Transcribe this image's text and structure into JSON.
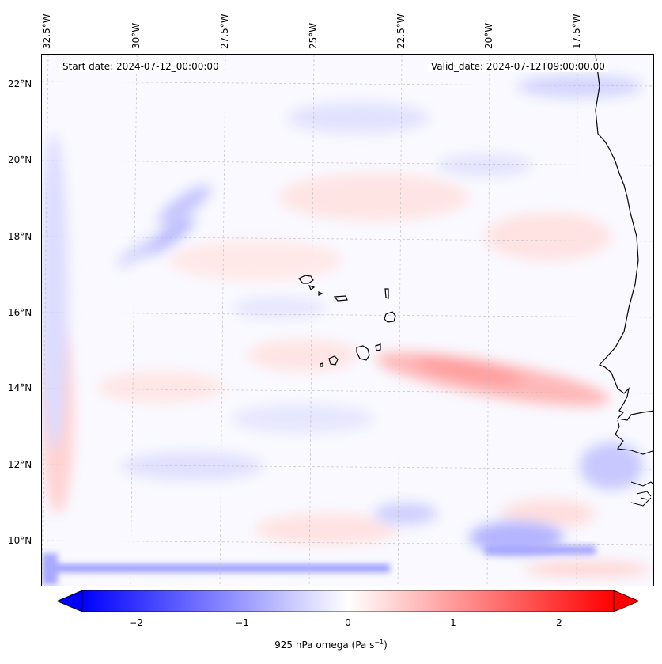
{
  "map": {
    "lon_labels": [
      "32.5°W",
      "30°W",
      "27.5°W",
      "25°W",
      "22.5°W",
      "20°W",
      "17.5°W"
    ],
    "lat_labels": [
      "22°N",
      "20°N",
      "18°N",
      "16°N",
      "14°N",
      "12°N",
      "10°N"
    ],
    "start_date": "Start date: 2024-07-12_00:00:00",
    "valid_date": "Valid_date: 2024-07-12T09:00:00.00",
    "field_colors": {
      "negative": "#0000ff",
      "neutral": "#ffffff",
      "positive": "#ff0000"
    }
  },
  "colorbar": {
    "ticks": [
      "−2",
      "−1",
      "0",
      "1",
      "2"
    ],
    "label_prefix": "925 hPa omega (Pa s",
    "label_exp": "−1",
    "label_suffix": ")",
    "range": [
      -2.6,
      2.6
    ]
  }
}
